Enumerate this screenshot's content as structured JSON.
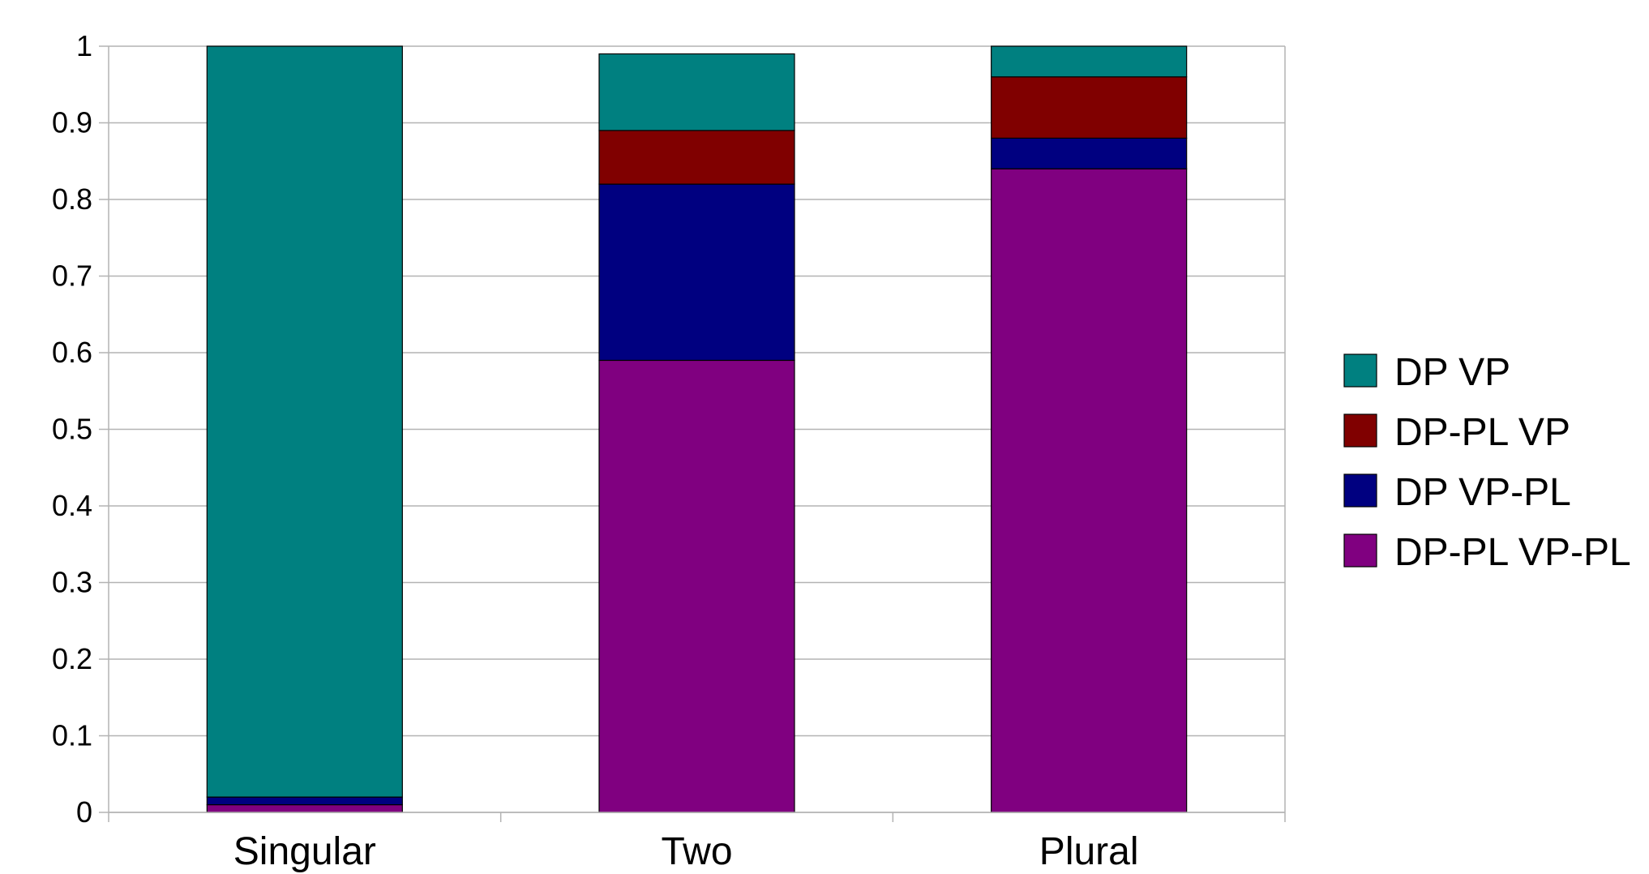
{
  "chart_data": {
    "type": "bar",
    "stacked": true,
    "categories": [
      "Singular",
      "Two",
      "Plural"
    ],
    "series": [
      {
        "name": "DP-PL VP-PL",
        "color": "#800080",
        "values": [
          0.01,
          0.59,
          0.84
        ]
      },
      {
        "name": "DP VP-PL",
        "color": "#000080",
        "values": [
          0.01,
          0.23,
          0.04
        ]
      },
      {
        "name": "DP-PL VP",
        "color": "#800000",
        "values": [
          0.0,
          0.07,
          0.08
        ]
      },
      {
        "name": "DP VP",
        "color": "#008080",
        "values": [
          0.98,
          0.1,
          0.04
        ]
      }
    ],
    "legend_order": [
      "DP VP",
      "DP-PL VP",
      "DP VP-PL",
      "DP-PL VP-PL"
    ],
    "ylim": [
      0,
      1
    ],
    "yticks": [
      "0",
      "0.1",
      "0.2",
      "0.3",
      "0.4",
      "0.5",
      "0.6",
      "0.7",
      "0.8",
      "0.9",
      "1"
    ],
    "grid": true,
    "legend_position": "right",
    "title": "",
    "xlabel": "",
    "ylabel": ""
  }
}
